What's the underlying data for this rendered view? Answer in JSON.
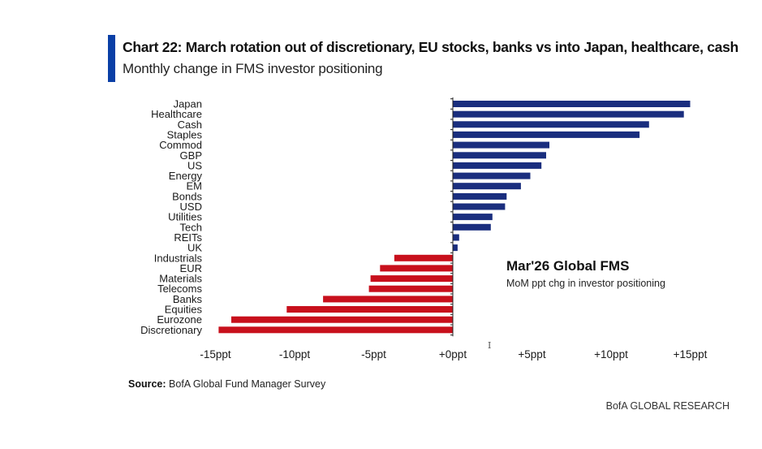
{
  "header": {
    "title": "Chart 22: March rotation out of discretionary, EU stocks, banks vs into Japan, healthcare, cash",
    "subtitle": "Monthly change in FMS investor positioning"
  },
  "annotation": {
    "title": "Mar'26 Global FMS",
    "subtitle": "MoM ppt chg in investor positioning"
  },
  "footer": {
    "source_label": "Source:",
    "source_text": "BofA Global Fund Manager Survey",
    "brand": "BofA GLOBAL RESEARCH"
  },
  "cursor_glyph": "I",
  "colors": {
    "positive": "#1a2e7e",
    "negative": "#c8101c",
    "accent": "#0a3fa6"
  },
  "chart_data": {
    "type": "bar",
    "orientation": "horizontal",
    "categories": [
      "Japan",
      "Healthcare",
      "Cash",
      "Staples",
      "Commod",
      "GBP",
      "US",
      "Energy",
      "EM",
      "Bonds",
      "USD",
      "Utilities",
      "Tech",
      "REITs",
      "UK",
      "Industrials",
      "EUR",
      "Materials",
      "Telecoms",
      "Banks",
      "Equities",
      "Eurozone",
      "Discretionary"
    ],
    "values": [
      15.0,
      14.6,
      12.4,
      11.8,
      6.1,
      5.9,
      5.6,
      4.9,
      4.3,
      3.4,
      3.3,
      2.5,
      2.4,
      0.4,
      0.3,
      -3.7,
      -4.6,
      -5.2,
      -5.3,
      -8.2,
      -10.5,
      -14.0,
      -14.8
    ],
    "xlim": [
      -15,
      15
    ],
    "xticks": [
      -15,
      -10,
      -5,
      0,
      5,
      10,
      15
    ],
    "xtick_labels": [
      "-15ppt",
      "-10ppt",
      "-5ppt",
      "+0ppt",
      "+5ppt",
      "+10ppt",
      "+15ppt"
    ],
    "xlabel": "",
    "ylabel": "",
    "grid": false,
    "legend": "none"
  }
}
